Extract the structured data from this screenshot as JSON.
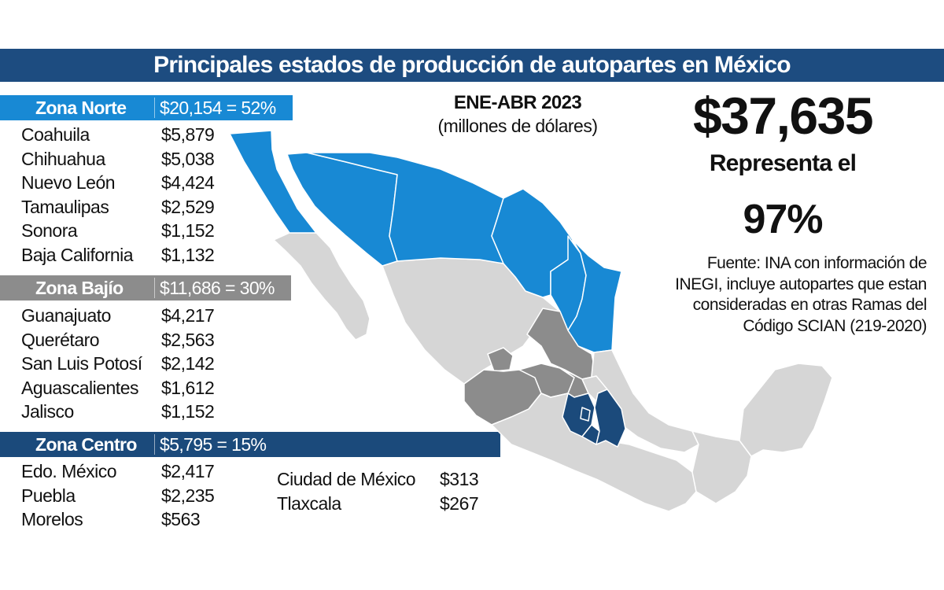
{
  "title": "Principales estados de producción de autopartes en México",
  "period": {
    "label": "ENE-ABR 2023",
    "unit": "(millones de dólares)"
  },
  "summary": {
    "total": "$37,635",
    "represents_label": "Representa el",
    "share": "97%"
  },
  "source": {
    "line1": "Fuente: INA con información de",
    "line2": "INEGI, incluye autopartes que estan",
    "line3": "consideradas en otras Ramas del",
    "line4": "Código SCIAN (219-2020)"
  },
  "colors": {
    "norte": "#1889d4",
    "bajio": "#8c8c8c",
    "centro": "#1b4a7b",
    "other": "#d6d6d6",
    "title_bar": "#1d4c80"
  },
  "zones": {
    "norte": {
      "name": "Zona Norte",
      "total": "$20,154 = 52%",
      "states": [
        {
          "name": "Coahuila",
          "value": "$5,879"
        },
        {
          "name": "Chihuahua",
          "value": "$5,038"
        },
        {
          "name": "Nuevo León",
          "value": "$4,424"
        },
        {
          "name": "Tamaulipas",
          "value": "$2,529"
        },
        {
          "name": "Sonora",
          "value": "$1,152"
        },
        {
          "name": "Baja California",
          "value": "$1,132"
        }
      ]
    },
    "bajio": {
      "name": "Zona Bajío",
      "total": "$11,686 = 30%",
      "states": [
        {
          "name": "Guanajuato",
          "value": "$4,217"
        },
        {
          "name": "Querétaro",
          "value": "$2,563"
        },
        {
          "name": "San Luis Potosí",
          "value": "$2,142"
        },
        {
          "name": "Aguascalientes",
          "value": "$1,612"
        },
        {
          "name": "Jalisco",
          "value": "$1,152"
        }
      ]
    },
    "centro": {
      "name": "Zona Centro",
      "total": "$5,795 = 15%",
      "states": [
        {
          "name": "Edo. México",
          "value": "$2,417"
        },
        {
          "name": "Puebla",
          "value": "$2,235"
        },
        {
          "name": "Morelos",
          "value": "$563"
        }
      ],
      "states_extra": [
        {
          "name": "Ciudad de México",
          "value": "$313"
        },
        {
          "name": "Tlaxcala",
          "value": "$267"
        }
      ]
    }
  }
}
